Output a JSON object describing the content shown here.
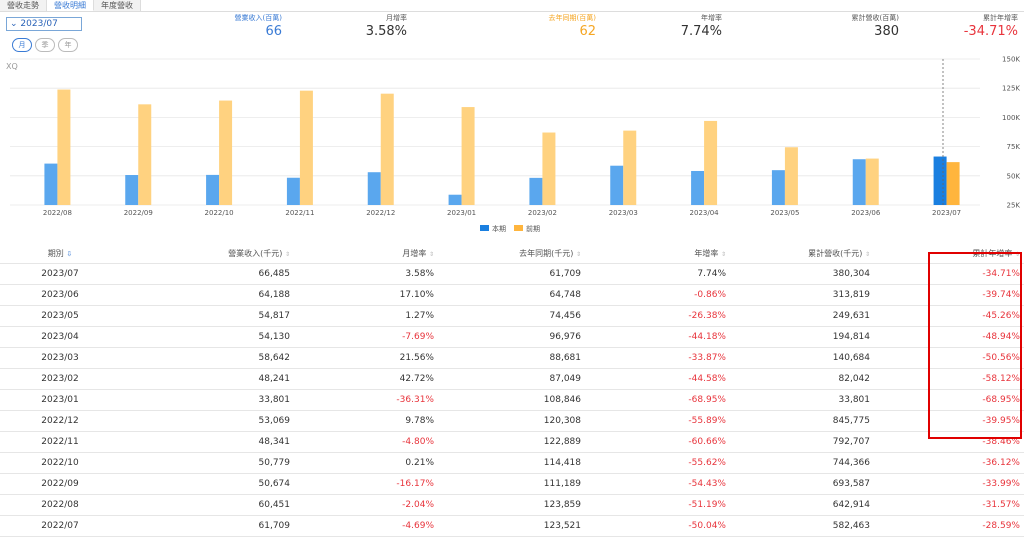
{
  "tabs": [
    {
      "label": "營收走勢",
      "active": false
    },
    {
      "label": "營收明細",
      "active": true
    },
    {
      "label": "年度營收",
      "active": false
    }
  ],
  "date_select": {
    "value": "2023/07"
  },
  "period_buttons": [
    {
      "label": "月",
      "active": true
    },
    {
      "label": "季",
      "active": false
    },
    {
      "label": "年",
      "active": false
    }
  ],
  "summary": {
    "revenue": {
      "label": "營業收入(百萬)",
      "value": "66"
    },
    "mom": {
      "label": "月增率",
      "value": "3.58%"
    },
    "last_year": {
      "label": "去年同期(百萬)",
      "value": "62"
    },
    "yoy": {
      "label": "年增率",
      "value": "7.74%"
    },
    "cumulative": {
      "label": "累計營收(百萬)",
      "value": "380"
    },
    "cum_yoy": {
      "label": "累計年增率",
      "value": "-34.71%"
    }
  },
  "colors": {
    "current": "#5aa7ee",
    "current_highlight": "#1a7fe0",
    "previous": "#ffd280",
    "previous_highlight": "#ffb53d",
    "negative": "#e8343c",
    "accent": "#3a7bd5"
  },
  "chart_data": {
    "type": "bar",
    "watermark": "XQ",
    "categories": [
      "2022/08",
      "2022/09",
      "2022/10",
      "2022/11",
      "2022/12",
      "2023/01",
      "2023/02",
      "2023/03",
      "2023/04",
      "2023/05",
      "2023/06",
      "2023/07"
    ],
    "series": [
      {
        "name": "本期",
        "values": [
          60451,
          50674,
          50779,
          48341,
          53069,
          33801,
          48241,
          58642,
          54130,
          54817,
          64188,
          66485
        ]
      },
      {
        "name": "前期",
        "values": [
          123859,
          111189,
          114418,
          122889,
          120308,
          108846,
          87049,
          88681,
          96976,
          74456,
          64748,
          61709
        ]
      }
    ],
    "y_ticks": [
      "150K",
      "125K",
      "100K",
      "75K",
      "50K",
      "25K"
    ],
    "ylim": [
      25000,
      150000
    ],
    "legend": [
      "本期",
      "前期"
    ]
  },
  "table": {
    "headers": [
      "期別",
      "營業收入(千元)",
      "月增率",
      "去年同期(千元)",
      "年增率",
      "累計營收(千元)",
      "累計年增率"
    ],
    "rows": [
      [
        "2023/07",
        "66,485",
        "3.58%",
        "61,709",
        "7.74%",
        "380,304",
        "-34.71%"
      ],
      [
        "2023/06",
        "64,188",
        "17.10%",
        "64,748",
        "-0.86%",
        "313,819",
        "-39.74%"
      ],
      [
        "2023/05",
        "54,817",
        "1.27%",
        "74,456",
        "-26.38%",
        "249,631",
        "-45.26%"
      ],
      [
        "2023/04",
        "54,130",
        "-7.69%",
        "96,976",
        "-44.18%",
        "194,814",
        "-48.94%"
      ],
      [
        "2023/03",
        "58,642",
        "21.56%",
        "88,681",
        "-33.87%",
        "140,684",
        "-50.56%"
      ],
      [
        "2023/02",
        "48,241",
        "42.72%",
        "87,049",
        "-44.58%",
        "82,042",
        "-58.12%"
      ],
      [
        "2023/01",
        "33,801",
        "-36.31%",
        "108,846",
        "-68.95%",
        "33,801",
        "-68.95%"
      ],
      [
        "2022/12",
        "53,069",
        "9.78%",
        "120,308",
        "-55.89%",
        "845,775",
        "-39.95%"
      ],
      [
        "2022/11",
        "48,341",
        "-4.80%",
        "122,889",
        "-60.66%",
        "792,707",
        "-38.46%"
      ],
      [
        "2022/10",
        "50,779",
        "0.21%",
        "114,418",
        "-55.62%",
        "744,366",
        "-36.12%"
      ],
      [
        "2022/09",
        "50,674",
        "-16.17%",
        "111,189",
        "-54.43%",
        "693,587",
        "-33.99%"
      ],
      [
        "2022/08",
        "60,451",
        "-2.04%",
        "123,859",
        "-51.19%",
        "642,914",
        "-31.57%"
      ],
      [
        "2022/07",
        "61,709",
        "-4.69%",
        "123,521",
        "-50.04%",
        "582,463",
        "-28.59%"
      ]
    ]
  }
}
